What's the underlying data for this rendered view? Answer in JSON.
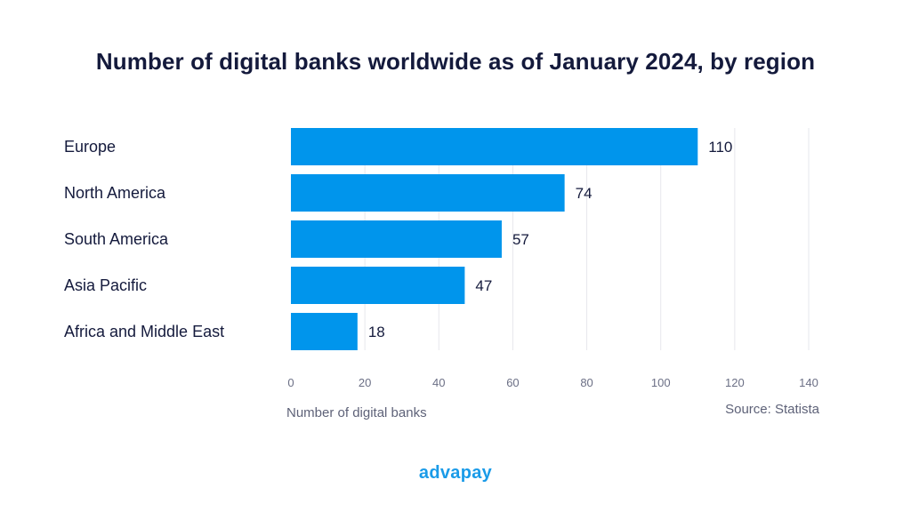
{
  "chart_data": {
    "type": "bar",
    "orientation": "horizontal",
    "title": "Number of digital banks worldwide as of January 2024, by region",
    "categories": [
      "Europe",
      "North America",
      "South America",
      "Asia Pacific",
      "Africa and Middle East"
    ],
    "values": [
      110,
      74,
      57,
      47,
      18
    ],
    "xlabel": "Number of digital banks",
    "ylabel": "",
    "xlim": [
      0,
      140
    ],
    "ticks": [
      0,
      20,
      40,
      60,
      80,
      100,
      120,
      140
    ],
    "grid": true,
    "bar_color": "#0095ec",
    "source": "Source: Statista"
  },
  "brand": {
    "logo_text": "advapay",
    "color": "#1a9be8"
  }
}
